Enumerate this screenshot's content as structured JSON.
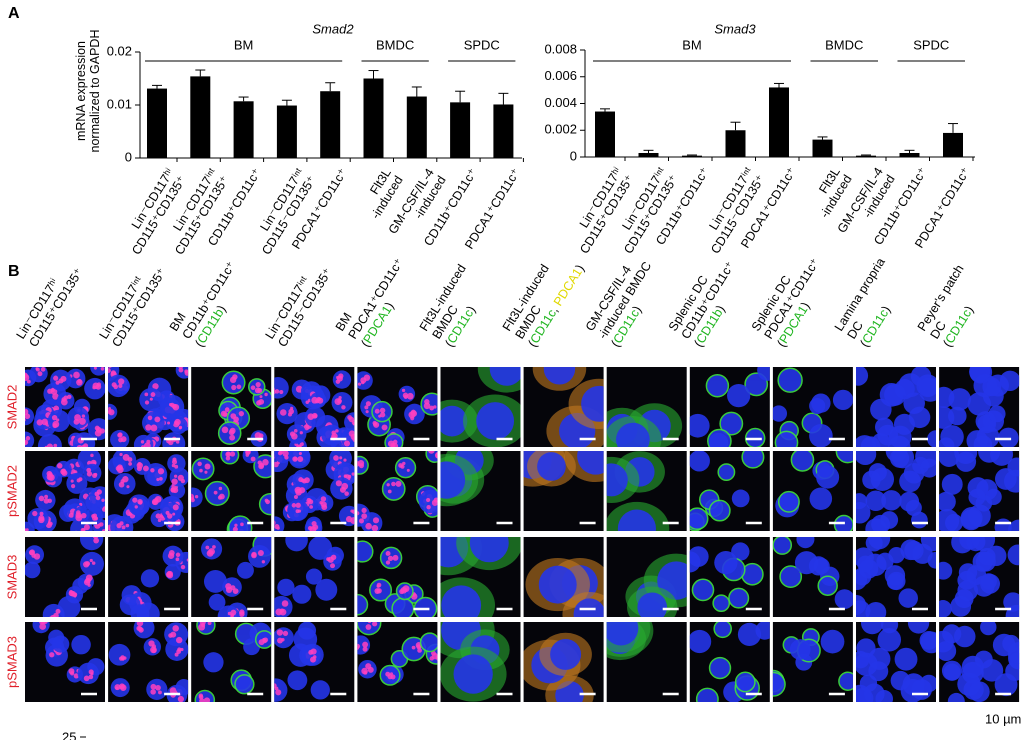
{
  "panel_labels": [
    "A",
    "B"
  ],
  "chart_data": [
    {
      "type": "bar",
      "title": "Smad2",
      "y_label": "mRNA expression\nnormalized to GAPDH",
      "groups": [
        "BM",
        "BMDC",
        "SPDC"
      ],
      "categories": [
        "Lin⁻CD117ʰⁱ\nCD115⁺CD135⁺",
        "Lin⁻CD117ⁱⁿᵗ\nCD115⁺CD135⁺",
        "CD11b⁺CD11c⁺",
        "Lin⁻CD117ⁱⁿᵗ\nCD115⁻CD135⁺",
        "PDCA1⁺CD11c⁺",
        "Flt3L\n-induced",
        "GM-CSF/IL-4\n-induced",
        "CD11b⁺CD11c⁺",
        "PDCA1⁺CD11c⁺"
      ],
      "values": [
        0.0131,
        0.0154,
        0.0107,
        0.0099,
        0.0126,
        0.015,
        0.0116,
        0.0105,
        0.0101
      ],
      "errors": [
        0.0006,
        0.0012,
        0.0008,
        0.001,
        0.0016,
        0.0015,
        0.0018,
        0.0021,
        0.0021
      ],
      "color": "#000000",
      "ylim": [
        0,
        0.02
      ],
      "yticks": [
        0,
        0.01,
        0.02
      ]
    },
    {
      "type": "bar",
      "title": "Smad3",
      "groups": [
        "BM",
        "BMDC",
        "SPDC"
      ],
      "categories": [
        "Lin⁻CD117ʰⁱ\nCD115⁺CD135⁺",
        "Lin⁻CD117ⁱⁿᵗ\nCD115⁺CD135⁺",
        "CD11b⁺CD11c⁺",
        "Lin⁻CD117ⁱⁿᵗ\nCD115⁻CD135⁺",
        "PDCA1⁺CD11c⁺",
        "Flt3L\n-induced",
        "GM-CSF/IL-4\n-induced",
        "CD11b⁺CD11c⁺",
        "PDCA1⁺CD11c⁺"
      ],
      "values": [
        0.0034,
        0.0003,
        0.0001,
        0.002,
        0.0052,
        0.0013,
        0.0001,
        0.0003,
        0.0018
      ],
      "errors": [
        0.0002,
        0.0002,
        5e-05,
        0.0006,
        0.0003,
        0.0002,
        5e-05,
        0.0002,
        0.0007
      ],
      "color": "#000000",
      "ylim": [
        0,
        0.008
      ],
      "yticks": [
        0,
        0.002,
        0.004,
        0.006,
        0.008
      ]
    }
  ],
  "image_panel": {
    "columns": [
      {
        "lines": [
          "Lin⁻CD117ʰⁱ",
          "CD115⁺CD135⁺"
        ]
      },
      {
        "lines": [
          "Lin⁻CD117ⁱⁿᵗ",
          "CD115⁺CD135⁺"
        ]
      },
      {
        "lines": [
          "BM",
          "CD11b⁺CD11c⁺"
        ],
        "stain": [
          {
            "text": "(",
            "color": "#000000"
          },
          {
            "text": "CD11b",
            "color": "#1fb51f"
          },
          {
            "text": ")",
            "color": "#000000"
          }
        ]
      },
      {
        "lines": [
          "Lin⁻CD117ⁱⁿᵗ",
          "CD115⁻CD135⁺"
        ]
      },
      {
        "lines": [
          "BM",
          "PDCA1⁺CD11c⁺"
        ],
        "stain": [
          {
            "text": "(",
            "color": "#000000"
          },
          {
            "text": "PDCA1",
            "color": "#1fb51f"
          },
          {
            "text": ")",
            "color": "#000000"
          }
        ]
      },
      {
        "lines": [
          "Flt3L-induced",
          "BMDC"
        ],
        "stain": [
          {
            "text": "(",
            "color": "#000000"
          },
          {
            "text": "CD11c",
            "color": "#1fb51f"
          },
          {
            "text": ")",
            "color": "#000000"
          }
        ]
      },
      {
        "lines": [
          "Flt3L-induced",
          "BMDC"
        ],
        "stain": [
          {
            "text": "(",
            "color": "#000000"
          },
          {
            "text": "CD11c",
            "color": "#1fb51f"
          },
          {
            "text": ", ",
            "color": "#000000"
          },
          {
            "text": "PDCA1",
            "color": "#e0d800"
          },
          {
            "text": ")",
            "color": "#000000"
          }
        ]
      },
      {
        "lines": [
          "GM-CSF/IL-4",
          "-induced BMDC"
        ],
        "stain": [
          {
            "text": "(",
            "color": "#000000"
          },
          {
            "text": "CD11c",
            "color": "#1fb51f"
          },
          {
            "text": ")",
            "color": "#000000"
          }
        ]
      },
      {
        "lines": [
          "Splenic DC",
          "CD11b⁺CD11c⁺"
        ],
        "stain": [
          {
            "text": "(",
            "color": "#000000"
          },
          {
            "text": "CD11b",
            "color": "#1fb51f"
          },
          {
            "text": ")",
            "color": "#000000"
          }
        ]
      },
      {
        "lines": [
          "Splenic DC",
          "PDCA1⁺CD11c⁺"
        ],
        "stain": [
          {
            "text": "(",
            "color": "#000000"
          },
          {
            "text": "PDCA1",
            "color": "#1fb51f"
          },
          {
            "text": ")",
            "color": "#000000"
          }
        ]
      },
      {
        "lines": [
          "Lamina propria",
          "DC"
        ],
        "stain": [
          {
            "text": "(",
            "color": "#000000"
          },
          {
            "text": "CD11c",
            "color": "#1fb51f"
          },
          {
            "text": ")",
            "color": "#000000"
          }
        ]
      },
      {
        "lines": [
          "Peyer's patch",
          "DC"
        ],
        "stain": [
          {
            "text": "(",
            "color": "#000000"
          },
          {
            "text": "CD11c",
            "color": "#1fb51f"
          },
          {
            "text": ")",
            "color": "#000000"
          }
        ]
      }
    ],
    "rows": [
      "SMAD2",
      "pSMAD2",
      "SMAD3",
      "pSMAD3"
    ],
    "row_label_color": "#e0202a",
    "scale_bar": "10 µm"
  },
  "next_panel_fragment": "25"
}
